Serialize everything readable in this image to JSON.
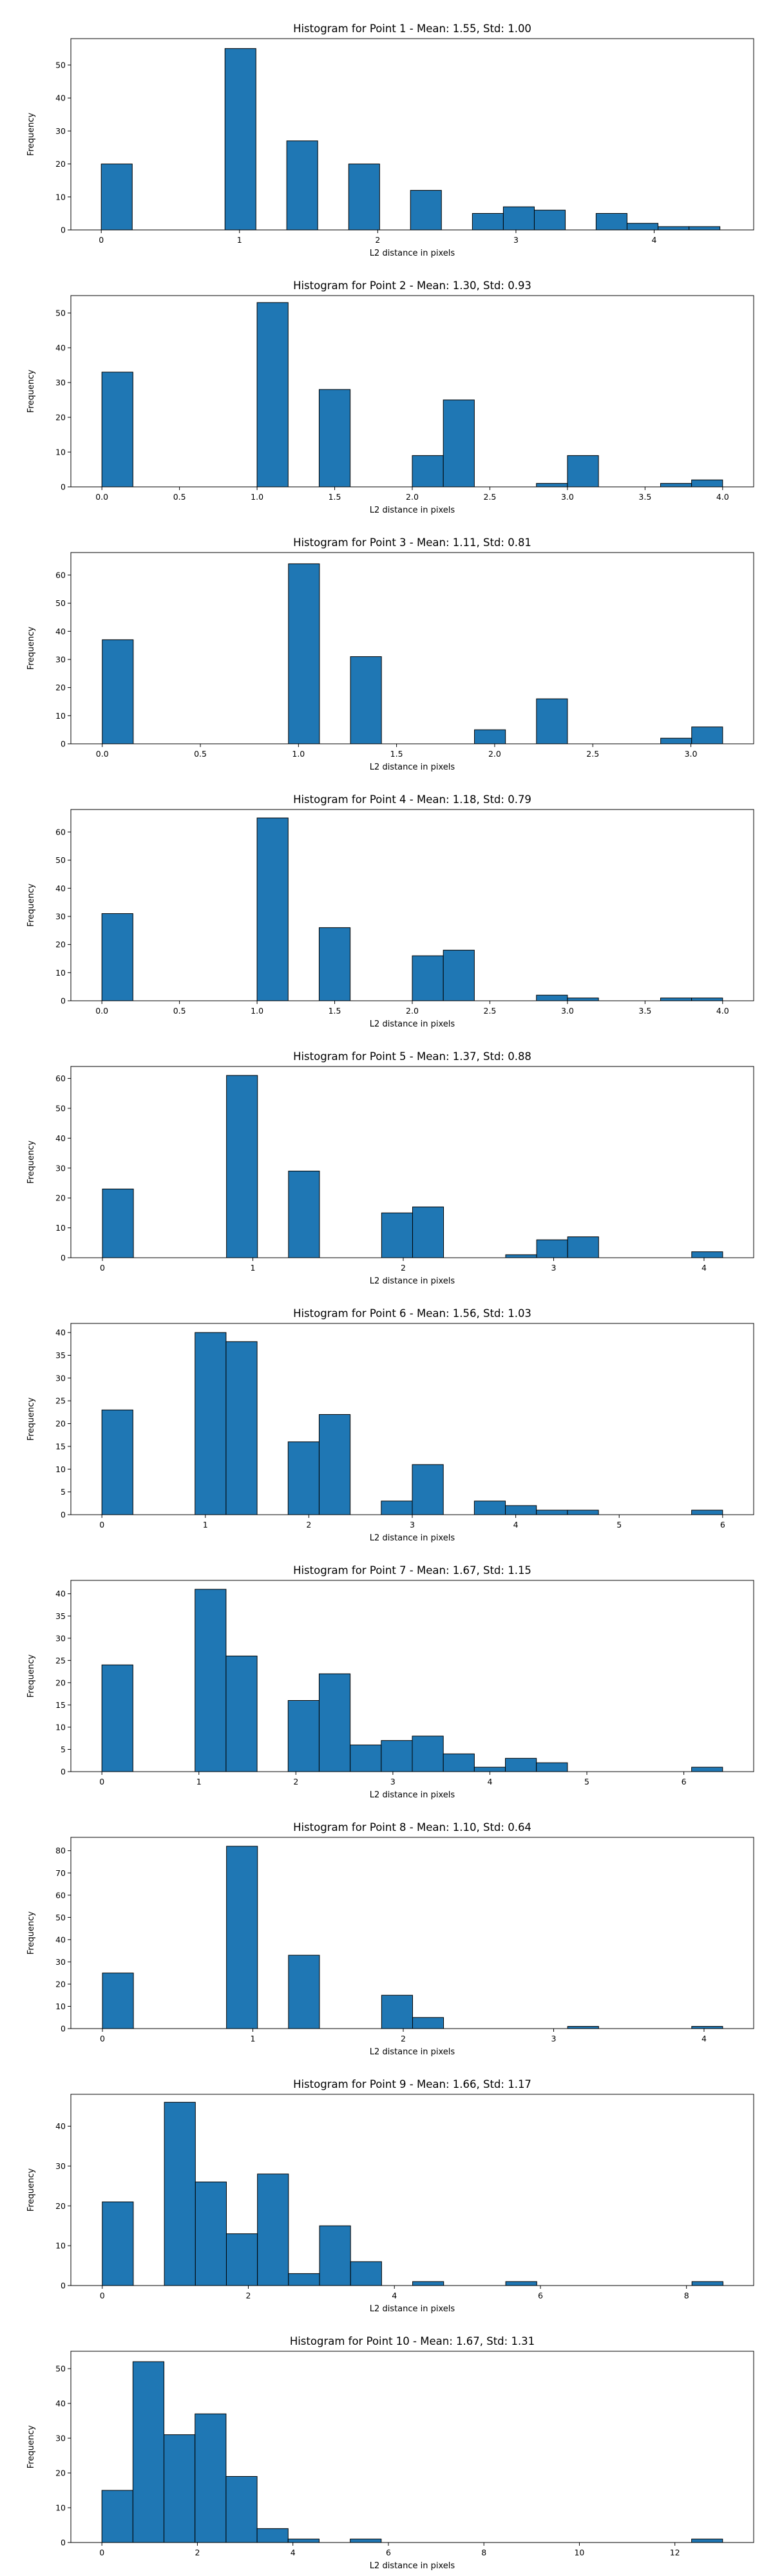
{
  "chart_data": [
    {
      "type": "bar",
      "title": "Histogram for Point 1 - Mean: 1.55, Std: 1.00",
      "xlabel": "L2 distance in pixels",
      "ylabel": "Frequency",
      "xlim": [
        -0.22,
        4.72
      ],
      "ylim": [
        0,
        58
      ],
      "xticks": [
        0,
        1,
        2,
        3,
        4
      ],
      "yticks": [
        0,
        10,
        20,
        30,
        40,
        50
      ],
      "bin_width": 0.224,
      "bins": [
        {
          "x": 0,
          "value": 20
        },
        {
          "x": 0.895,
          "value": 55
        },
        {
          "x": 1.342,
          "value": 27
        },
        {
          "x": 1.79,
          "value": 20
        },
        {
          "x": 2.237,
          "value": 12
        },
        {
          "x": 2.685,
          "value": 5
        },
        {
          "x": 2.909,
          "value": 7
        },
        {
          "x": 3.133,
          "value": 6
        },
        {
          "x": 3.58,
          "value": 5
        },
        {
          "x": 3.804,
          "value": 2
        },
        {
          "x": 4.028,
          "value": 1
        },
        {
          "x": 4.252,
          "value": 1
        }
      ]
    },
    {
      "type": "bar",
      "title": "Histogram for Point 2 - Mean: 1.30, Std: 0.93",
      "xlabel": "L2 distance in pixels",
      "ylabel": "Frequency",
      "xlim": [
        -0.2,
        4.2
      ],
      "ylim": [
        0,
        55
      ],
      "xticks": [
        "0.0",
        "0.5",
        "1.0",
        "1.5",
        "2.0",
        "2.5",
        "3.0",
        "3.5",
        "4.0"
      ],
      "yticks": [
        0,
        10,
        20,
        30,
        40,
        50
      ],
      "bin_width": 0.2,
      "bins": [
        {
          "x": 0,
          "value": 33
        },
        {
          "x": 1,
          "value": 53
        },
        {
          "x": 1.4,
          "value": 28
        },
        {
          "x": 2,
          "value": 9
        },
        {
          "x": 2.2,
          "value": 25
        },
        {
          "x": 2.8,
          "value": 1
        },
        {
          "x": 3,
          "value": 9
        },
        {
          "x": 3.6,
          "value": 1
        },
        {
          "x": 3.8,
          "value": 2
        }
      ]
    },
    {
      "type": "bar",
      "title": "Histogram for Point 3 - Mean: 1.11, Std: 0.81",
      "xlabel": "L2 distance in pixels",
      "ylabel": "Frequency",
      "xlim": [
        -0.16,
        3.32
      ],
      "ylim": [
        0,
        68
      ],
      "xticks": [
        "0.0",
        "0.5",
        "1.0",
        "1.5",
        "2.0",
        "2.5",
        "3.0"
      ],
      "yticks": [
        0,
        10,
        20,
        30,
        40,
        50,
        60
      ],
      "bin_width": 0.158,
      "bins": [
        {
          "x": 0,
          "value": 37
        },
        {
          "x": 0.949,
          "value": 64
        },
        {
          "x": 1.265,
          "value": 31
        },
        {
          "x": 1.897,
          "value": 5
        },
        {
          "x": 2.213,
          "value": 16
        },
        {
          "x": 2.846,
          "value": 2
        },
        {
          "x": 3.004,
          "value": 6
        }
      ]
    },
    {
      "type": "bar",
      "title": "Histogram for Point 4 - Mean: 1.18, Std: 0.79",
      "xlabel": "L2 distance in pixels",
      "ylabel": "Frequency",
      "xlim": [
        -0.2,
        4.2
      ],
      "ylim": [
        0,
        68
      ],
      "xticks": [
        "0.0",
        "0.5",
        "1.0",
        "1.5",
        "2.0",
        "2.5",
        "3.0",
        "3.5",
        "4.0"
      ],
      "yticks": [
        0,
        10,
        20,
        30,
        40,
        50,
        60
      ],
      "bin_width": 0.2,
      "bins": [
        {
          "x": 0,
          "value": 31
        },
        {
          "x": 1,
          "value": 65
        },
        {
          "x": 1.4,
          "value": 26
        },
        {
          "x": 2,
          "value": 16
        },
        {
          "x": 2.2,
          "value": 18
        },
        {
          "x": 2.8,
          "value": 2
        },
        {
          "x": 3,
          "value": 1
        },
        {
          "x": 3.6,
          "value": 1
        },
        {
          "x": 3.8,
          "value": 1
        }
      ]
    },
    {
      "type": "bar",
      "title": "Histogram for Point 5 - Mean: 1.37, Std: 0.88",
      "xlabel": "L2 distance in pixels",
      "ylabel": "Frequency",
      "xlim": [
        -0.21,
        4.33
      ],
      "ylim": [
        0,
        64
      ],
      "xticks": [
        0,
        1,
        2,
        3,
        4
      ],
      "yticks": [
        0,
        10,
        20,
        30,
        40,
        50,
        60
      ],
      "bin_width": 0.206,
      "bins": [
        {
          "x": 0,
          "value": 23
        },
        {
          "x": 0.825,
          "value": 61
        },
        {
          "x": 1.237,
          "value": 29
        },
        {
          "x": 1.856,
          "value": 15
        },
        {
          "x": 2.062,
          "value": 17
        },
        {
          "x": 2.681,
          "value": 1
        },
        {
          "x": 2.887,
          "value": 6
        },
        {
          "x": 3.093,
          "value": 7
        },
        {
          "x": 3.918,
          "value": 2
        }
      ]
    },
    {
      "type": "bar",
      "title": "Histogram for Point 6 - Mean: 1.56, Std: 1.03",
      "xlabel": "L2 distance in pixels",
      "ylabel": "Frequency",
      "xlim": [
        -0.3,
        6.3
      ],
      "ylim": [
        0,
        42
      ],
      "xticks": [
        0,
        1,
        2,
        3,
        4,
        5,
        6
      ],
      "yticks": [
        0,
        5,
        10,
        15,
        20,
        25,
        30,
        35,
        40
      ],
      "bin_width": 0.3,
      "bins": [
        {
          "x": 0,
          "value": 23
        },
        {
          "x": 0.9,
          "value": 40
        },
        {
          "x": 1.2,
          "value": 38
        },
        {
          "x": 1.8,
          "value": 16
        },
        {
          "x": 2.1,
          "value": 22
        },
        {
          "x": 2.7,
          "value": 3
        },
        {
          "x": 3,
          "value": 11
        },
        {
          "x": 3.6,
          "value": 3
        },
        {
          "x": 3.9,
          "value": 2
        },
        {
          "x": 4.2,
          "value": 1
        },
        {
          "x": 4.5,
          "value": 1
        },
        {
          "x": 5.7,
          "value": 1
        }
      ]
    },
    {
      "type": "bar",
      "title": "Histogram for Point 7 - Mean: 1.67, Std: 1.15",
      "xlabel": "L2 distance in pixels",
      "ylabel": "Frequency",
      "xlim": [
        -0.32,
        6.72
      ],
      "ylim": [
        0,
        43
      ],
      "xticks": [
        0,
        1,
        2,
        3,
        4,
        5,
        6
      ],
      "yticks": [
        0,
        5,
        10,
        15,
        20,
        25,
        30,
        35,
        40
      ],
      "bin_width": 0.32,
      "bins": [
        {
          "x": 0,
          "value": 24
        },
        {
          "x": 0.96,
          "value": 41
        },
        {
          "x": 1.28,
          "value": 26
        },
        {
          "x": 1.92,
          "value": 16
        },
        {
          "x": 2.24,
          "value": 22
        },
        {
          "x": 2.56,
          "value": 6
        },
        {
          "x": 2.88,
          "value": 7
        },
        {
          "x": 3.2,
          "value": 8
        },
        {
          "x": 3.52,
          "value": 4
        },
        {
          "x": 3.84,
          "value": 1
        },
        {
          "x": 4.16,
          "value": 3
        },
        {
          "x": 4.48,
          "value": 2
        },
        {
          "x": 6.08,
          "value": 1
        }
      ]
    },
    {
      "type": "bar",
      "title": "Histogram for Point 8 - Mean: 1.10, Std: 0.64",
      "xlabel": "L2 distance in pixels",
      "ylabel": "Frequency",
      "xlim": [
        -0.21,
        4.33
      ],
      "ylim": [
        0,
        86
      ],
      "xticks": [
        0,
        1,
        2,
        3,
        4
      ],
      "yticks": [
        0,
        10,
        20,
        30,
        40,
        50,
        60,
        70,
        80
      ],
      "bin_width": 0.206,
      "bins": [
        {
          "x": 0,
          "value": 25
        },
        {
          "x": 0.825,
          "value": 82
        },
        {
          "x": 1.237,
          "value": 33
        },
        {
          "x": 1.856,
          "value": 15
        },
        {
          "x": 2.062,
          "value": 5
        },
        {
          "x": 3.093,
          "value": 1
        },
        {
          "x": 3.918,
          "value": 1
        }
      ]
    },
    {
      "type": "bar",
      "title": "Histogram for Point 9 - Mean: 1.66, Std: 1.17",
      "xlabel": "L2 distance in pixels",
      "ylabel": "Frequency",
      "xlim": [
        -0.43,
        8.92
      ],
      "ylim": [
        0,
        48
      ],
      "xticks": [
        0,
        2,
        4,
        6,
        8
      ],
      "yticks": [
        0,
        10,
        20,
        30,
        40
      ],
      "bin_width": 0.425,
      "bins": [
        {
          "x": 0,
          "value": 21
        },
        {
          "x": 0.85,
          "value": 46
        },
        {
          "x": 1.275,
          "value": 26
        },
        {
          "x": 1.7,
          "value": 13
        },
        {
          "x": 2.125,
          "value": 28
        },
        {
          "x": 2.55,
          "value": 3
        },
        {
          "x": 2.975,
          "value": 15
        },
        {
          "x": 3.4,
          "value": 6
        },
        {
          "x": 4.25,
          "value": 1
        },
        {
          "x": 5.525,
          "value": 1
        },
        {
          "x": 8.075,
          "value": 1
        }
      ]
    },
    {
      "type": "bar",
      "title": "Histogram for Point 10 - Mean: 1.67, Std: 1.31",
      "xlabel": "L2 distance in pixels",
      "ylabel": "Frequency",
      "xlim": [
        -0.65,
        13.65
      ],
      "ylim": [
        0,
        55
      ],
      "xticks": [
        0,
        2,
        4,
        6,
        8,
        10,
        12
      ],
      "yticks": [
        0,
        10,
        20,
        30,
        40,
        50
      ],
      "bin_width": 0.65,
      "bins": [
        {
          "x": 0,
          "value": 15
        },
        {
          "x": 0.65,
          "value": 52
        },
        {
          "x": 1.3,
          "value": 31
        },
        {
          "x": 1.95,
          "value": 37
        },
        {
          "x": 2.6,
          "value": 19
        },
        {
          "x": 3.25,
          "value": 4
        },
        {
          "x": 3.9,
          "value": 1
        },
        {
          "x": 5.2,
          "value": 1
        },
        {
          "x": 12.35,
          "value": 1
        }
      ]
    }
  ],
  "style": {
    "bar_fill": "#1f77b4",
    "bar_edge": "#000000",
    "axes_color": "#000000",
    "background": "#ffffff"
  }
}
